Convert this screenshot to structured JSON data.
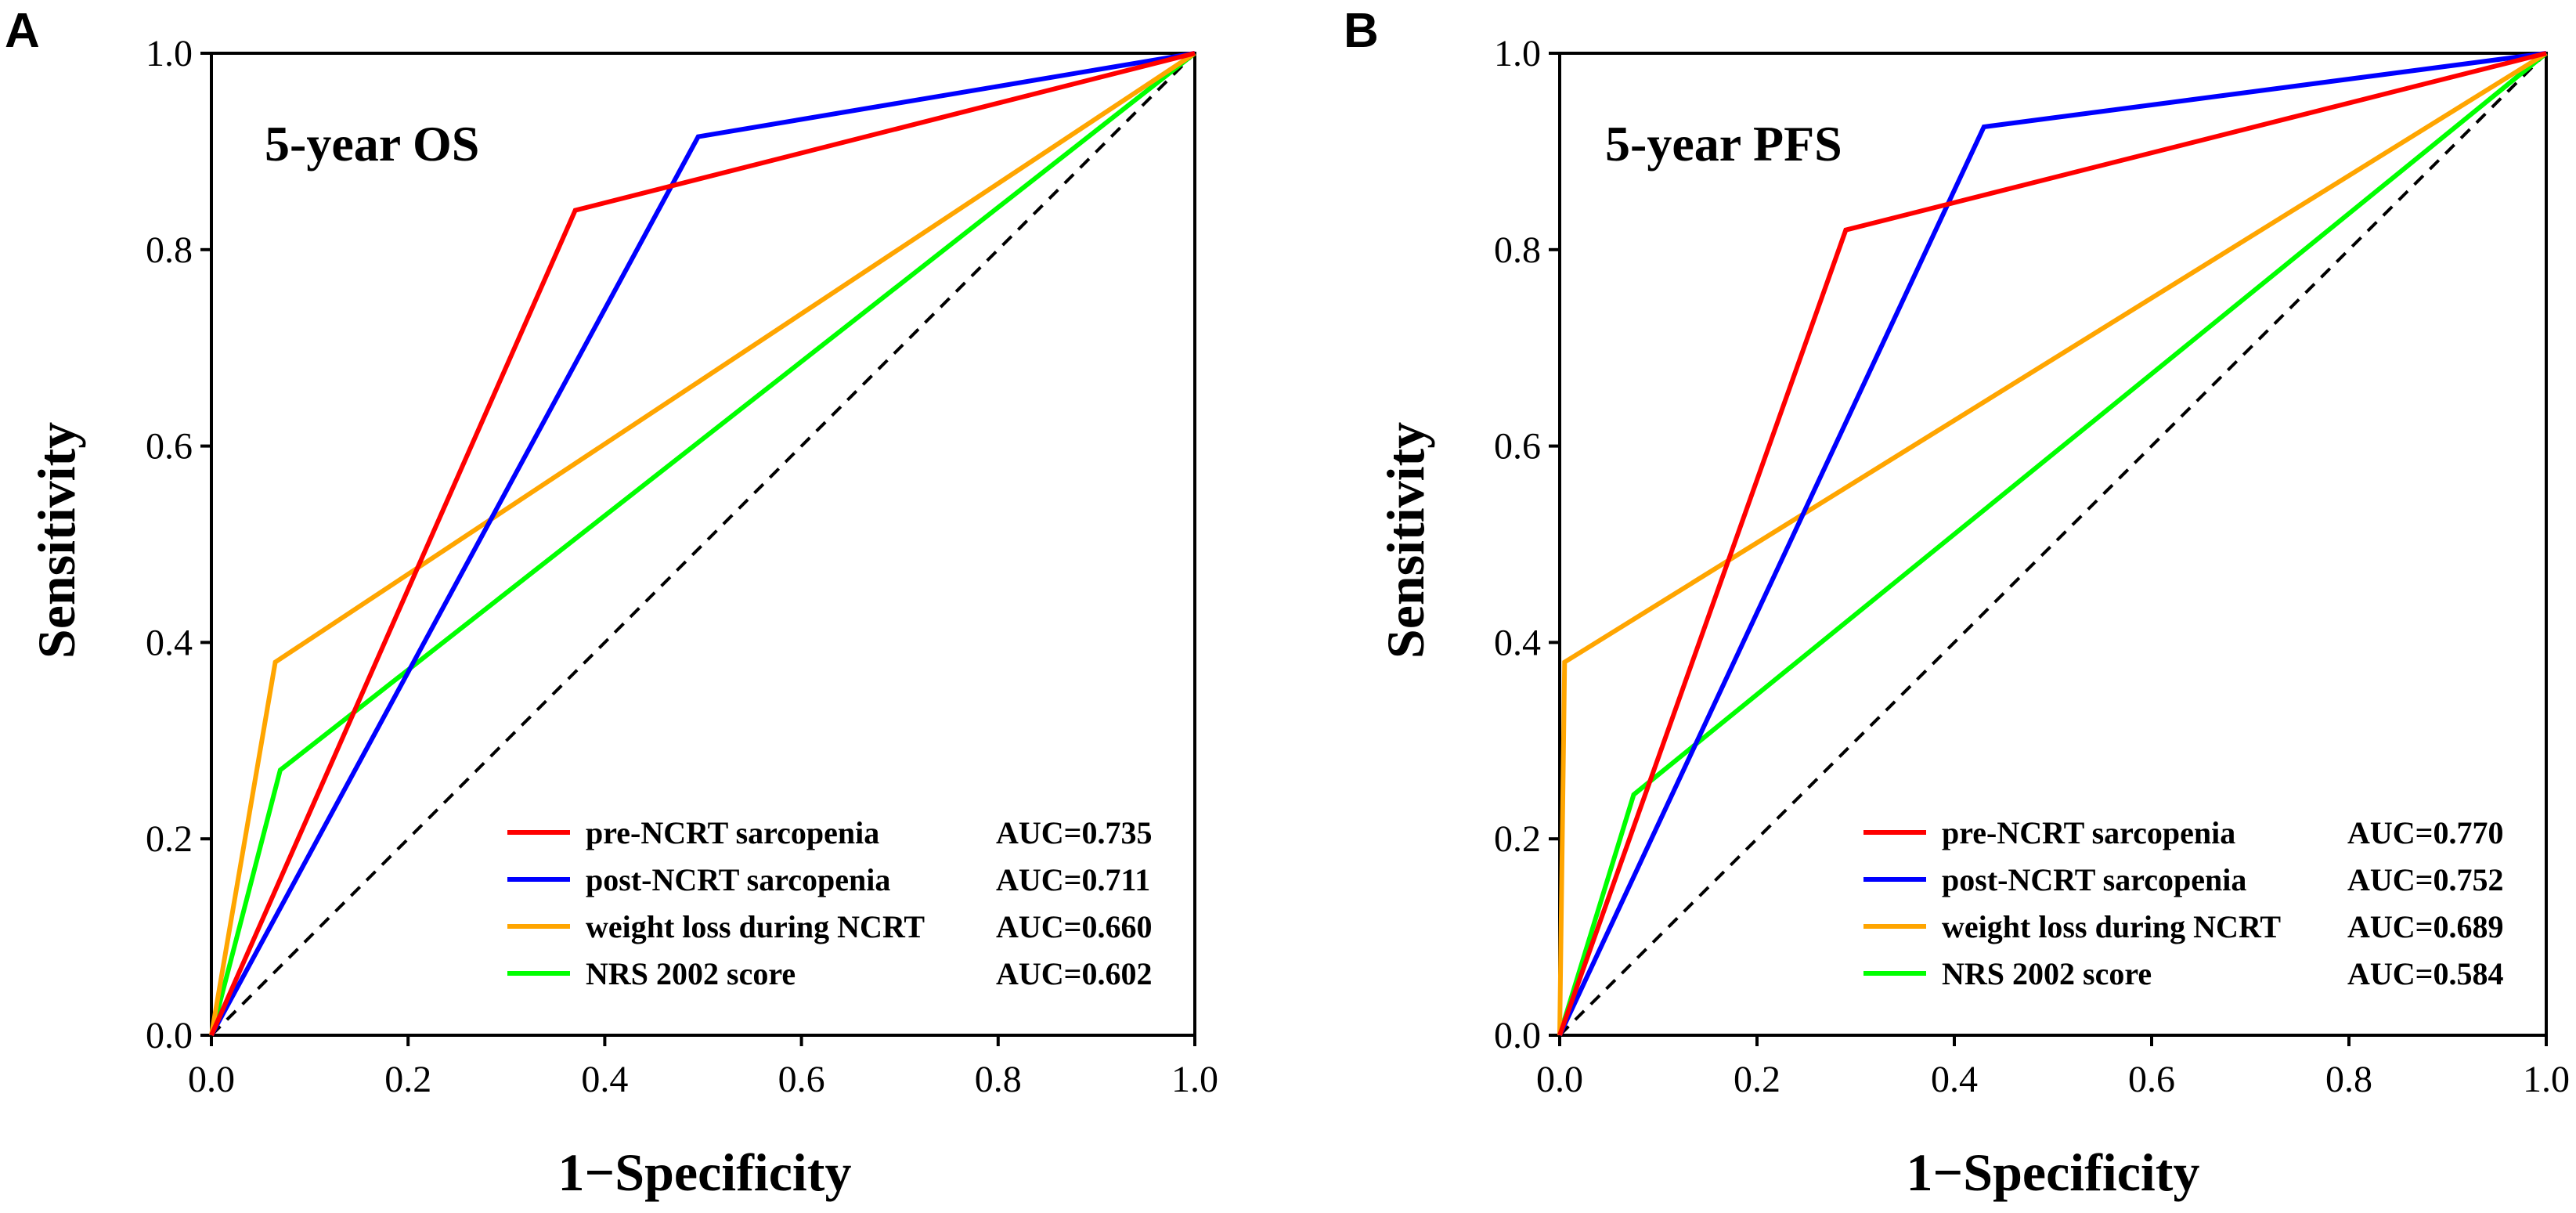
{
  "colors": {
    "pre": "#ff0000",
    "post": "#0000ff",
    "weight": "#ffa500",
    "nrs": "#00ff00",
    "reference": "#000000"
  },
  "chart_data": [
    {
      "type": "line",
      "panel": "A",
      "title": "5-year OS",
      "xlabel": "1−Specificity",
      "ylabel": "Sensitivity",
      "xlim": [
        0,
        1
      ],
      "ylim": [
        0,
        1
      ],
      "xticks": [
        "0.0",
        "0.2",
        "0.4",
        "0.6",
        "0.8",
        "1.0"
      ],
      "yticks": [
        "0.0",
        "0.2",
        "0.4",
        "0.6",
        "0.8",
        "1.0"
      ],
      "legend_position": "bottom-right",
      "reference_line": {
        "points": [
          [
            0,
            0
          ],
          [
            1,
            1
          ]
        ],
        "style": "dashed"
      },
      "series": [
        {
          "key": "pre",
          "name": "pre-NCRT sarcopenia",
          "auc_label": "AUC=0.735",
          "points": [
            [
              0,
              0
            ],
            [
              0.37,
              0.84
            ],
            [
              1,
              1
            ]
          ]
        },
        {
          "key": "post",
          "name": "post-NCRT sarcopenia",
          "auc_label": "AUC=0.711",
          "points": [
            [
              0,
              0
            ],
            [
              0.495,
              0.915
            ],
            [
              1,
              1
            ]
          ]
        },
        {
          "key": "weight",
          "name": "weight loss during NCRT",
          "auc_label": "AUC=0.660",
          "points": [
            [
              0,
              0
            ],
            [
              0.065,
              0.38
            ],
            [
              1,
              1
            ]
          ]
        },
        {
          "key": "nrs",
          "name": "NRS 2002 score",
          "auc_label": "AUC=0.602",
          "points": [
            [
              0,
              0
            ],
            [
              0.07,
              0.27
            ],
            [
              1,
              1
            ]
          ]
        }
      ]
    },
    {
      "type": "line",
      "panel": "B",
      "title": "5-year PFS",
      "xlabel": "1−Specificity",
      "ylabel": "Sensitivity",
      "xlim": [
        0,
        1
      ],
      "ylim": [
        0,
        1
      ],
      "xticks": [
        "0.0",
        "0.2",
        "0.4",
        "0.6",
        "0.8",
        "1.0"
      ],
      "yticks": [
        "0.0",
        "0.2",
        "0.4",
        "0.6",
        "0.8",
        "1.0"
      ],
      "legend_position": "bottom-right",
      "reference_line": {
        "points": [
          [
            0,
            0
          ],
          [
            1,
            1
          ]
        ],
        "style": "dashed"
      },
      "series": [
        {
          "key": "pre",
          "name": "pre-NCRT sarcopenia",
          "auc_label": "AUC=0.770",
          "points": [
            [
              0,
              0
            ],
            [
              0.29,
              0.82
            ],
            [
              1,
              1
            ]
          ]
        },
        {
          "key": "post",
          "name": "post-NCRT sarcopenia",
          "auc_label": "AUC=0.752",
          "points": [
            [
              0,
              0
            ],
            [
              0.43,
              0.925
            ],
            [
              1,
              1
            ]
          ]
        },
        {
          "key": "weight",
          "name": "weight loss during NCRT",
          "auc_label": "AUC=0.689",
          "points": [
            [
              0,
              0
            ],
            [
              0.005,
              0.38
            ],
            [
              1,
              1
            ]
          ]
        },
        {
          "key": "nrs",
          "name": "NRS 2002 score",
          "auc_label": "AUC=0.584",
          "points": [
            [
              0,
              0
            ],
            [
              0.075,
              0.245
            ],
            [
              1,
              1
            ]
          ]
        }
      ]
    }
  ]
}
